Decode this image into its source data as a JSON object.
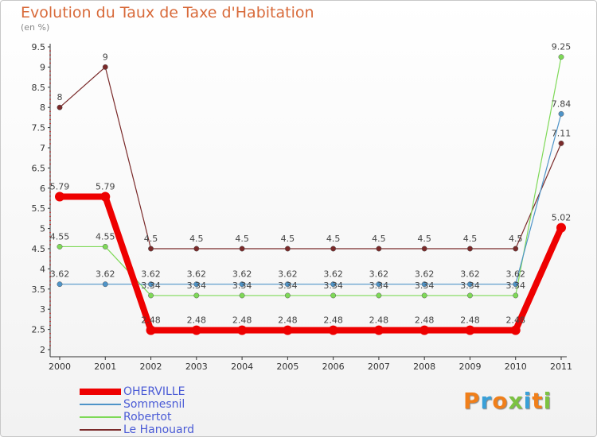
{
  "title": "Evolution du Taux de Taxe d'Habitation",
  "unit": "(en %)",
  "logo": {
    "text": "Proxiti",
    "colors": [
      "#f07f1a",
      "#3aa0d8",
      "#f07f1a",
      "#7cc242",
      "#3aa0d8",
      "#f07f1a",
      "#7cc242"
    ]
  },
  "chart_data": {
    "type": "line",
    "x": [
      "2000",
      "2001",
      "2002",
      "2003",
      "2004",
      "2005",
      "2006",
      "2007",
      "2008",
      "2009",
      "2010",
      "2011"
    ],
    "ylim": [
      2,
      9.5
    ],
    "yticks": [
      "2",
      "2.5",
      "3",
      "3.5",
      "4",
      "4.5",
      "5",
      "5.5",
      "6",
      "6.5",
      "7",
      "7.5",
      "8",
      "8.5",
      "9",
      "9.5"
    ],
    "grid": false,
    "legend": "bottom-left",
    "series": [
      {
        "name": "OHERVILLE",
        "color": "#ee0000",
        "values": [
          5.79,
          5.79,
          2.48,
          2.48,
          2.48,
          2.48,
          2.48,
          2.48,
          2.48,
          2.48,
          2.48,
          5.02
        ],
        "labels": [
          "5.79",
          "5.79",
          "2.48",
          "2.48",
          "2.48",
          "2.48",
          "2.48",
          "2.48",
          "2.48",
          "2.48",
          "2.48",
          "5.02"
        ]
      },
      {
        "name": "Sommesnil",
        "color": "#4f94c8",
        "values": [
          3.62,
          3.62,
          3.62,
          3.62,
          3.62,
          3.62,
          3.62,
          3.62,
          3.62,
          3.62,
          3.62,
          7.84
        ],
        "labels": [
          "3.62",
          "3.62",
          "3.62",
          "3.62",
          "3.62",
          "3.62",
          "3.62",
          "3.62",
          "3.62",
          "3.62",
          "3.62",
          "7.84"
        ]
      },
      {
        "name": "Robertot",
        "color": "#7ed957",
        "values": [
          4.55,
          4.55,
          3.34,
          3.34,
          3.34,
          3.34,
          3.34,
          3.34,
          3.34,
          3.34,
          3.34,
          9.25
        ],
        "labels": [
          "4.55",
          "4.55",
          "3.34",
          "3.34",
          "3.34",
          "3.34",
          "3.34",
          "3.34",
          "3.34",
          "3.34",
          "3.34",
          "9.25"
        ]
      },
      {
        "name": "Le Hanouard",
        "color": "#7a2a2a",
        "values": [
          8,
          9,
          4.5,
          4.5,
          4.5,
          4.5,
          4.5,
          4.5,
          4.5,
          4.5,
          4.5,
          7.11
        ],
        "labels": [
          "8",
          "9",
          "4.5",
          "4.5",
          "4.5",
          "4.5",
          "4.5",
          "4.5",
          "4.5",
          "4.5",
          "4.5",
          "7.11"
        ]
      }
    ]
  }
}
